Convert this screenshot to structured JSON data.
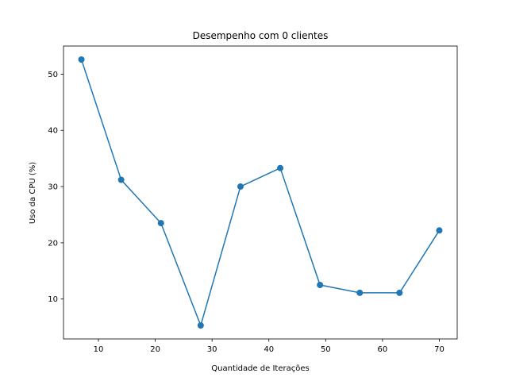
{
  "chart_data": {
    "type": "line",
    "title": "Desempenho com 0 clientes",
    "xlabel": "Quantidade de Iterações",
    "ylabel": "Uso da CPU (%)",
    "xlim": [
      3.85,
      73.15
    ],
    "ylim": [
      2.9,
      55.0
    ],
    "xticks": [
      10,
      20,
      30,
      40,
      50,
      60,
      70
    ],
    "yticks": [
      10,
      20,
      30,
      40,
      50
    ],
    "grid": false,
    "series": [
      {
        "color": "#1f77b4",
        "marker": "circle",
        "x": [
          7,
          14,
          21,
          28,
          35,
          42,
          49,
          56,
          63,
          70
        ],
        "y": [
          52.6,
          31.2,
          23.5,
          5.3,
          30.0,
          33.3,
          12.5,
          11.1,
          11.1,
          22.2
        ]
      }
    ]
  }
}
